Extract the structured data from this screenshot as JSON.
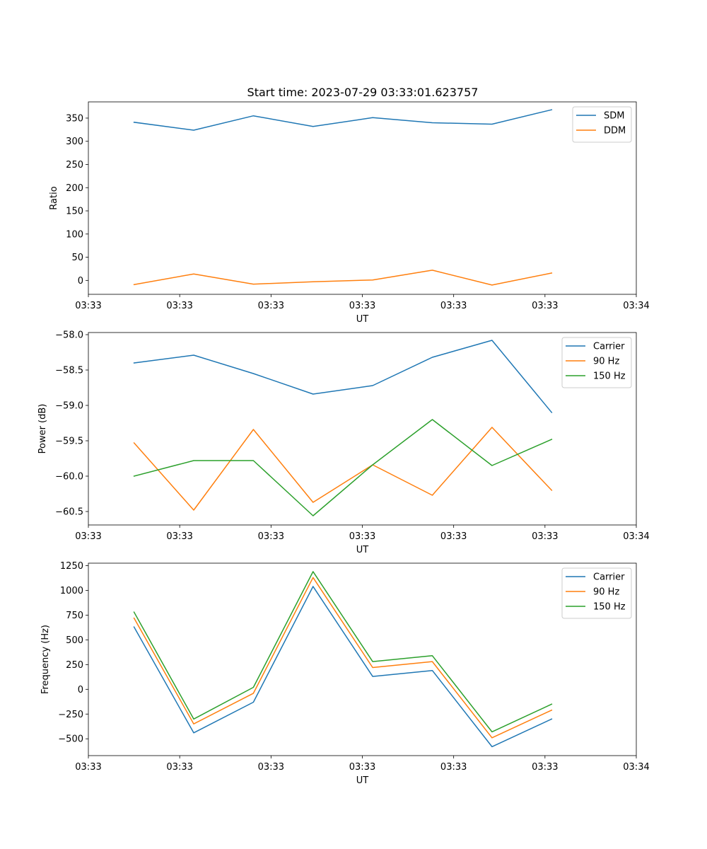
{
  "chart_data": [
    {
      "type": "line",
      "title": "Start time: 2023-07-29 03:33:01.623757",
      "xlabel": "UT",
      "ylabel": "Ratio",
      "xlim": [
        0.0,
        9.0
      ],
      "ylim": [
        -30,
        385
      ],
      "grid": false,
      "legend": "top-right",
      "x": [
        0.75,
        1.73,
        2.71,
        3.69,
        4.67,
        5.65,
        6.63,
        7.61
      ],
      "x_tick_values": [
        0,
        1.5,
        3,
        4.5,
        6,
        7.5,
        9
      ],
      "x_tick_labels": [
        "03:33",
        "03:33",
        "03:33",
        "03:33",
        "03:33",
        "03:33",
        "03:34"
      ],
      "y_ticks": [
        0,
        50,
        100,
        150,
        200,
        250,
        300,
        350
      ],
      "y_tick_labels": [
        "0",
        "50",
        "100",
        "150",
        "200",
        "250",
        "300",
        "350"
      ],
      "series": [
        {
          "name": "SDM",
          "color": "#1f77b4",
          "values": [
            341,
            324,
            355,
            332,
            351,
            340,
            337,
            368
          ]
        },
        {
          "name": "DDM",
          "color": "#ff7f0e",
          "values": [
            -9,
            14,
            -8,
            -3,
            1,
            22,
            -10,
            16
          ]
        }
      ]
    },
    {
      "type": "line",
      "title": "",
      "xlabel": "UT",
      "ylabel": "Power (dB)",
      "xlim": [
        0.0,
        9.0
      ],
      "ylim": [
        -60.69,
        -57.97
      ],
      "grid": false,
      "legend": "top-right",
      "x": [
        0.75,
        1.73,
        2.71,
        3.69,
        4.67,
        5.65,
        6.63,
        7.61
      ],
      "x_tick_values": [
        0,
        1.5,
        3,
        4.5,
        6,
        7.5,
        9
      ],
      "x_tick_labels": [
        "03:33",
        "03:33",
        "03:33",
        "03:33",
        "03:33",
        "03:33",
        "03:34"
      ],
      "y_ticks": [
        -60.5,
        -60.0,
        -59.5,
        -59.0,
        -58.5,
        -58.0
      ],
      "y_tick_labels": [
        "−60.5",
        "−60.0",
        "−59.5",
        "−59.0",
        "−58.5",
        "−58.0"
      ],
      "series": [
        {
          "name": "Carrier",
          "color": "#1f77b4",
          "values": [
            -58.4,
            -58.29,
            -58.55,
            -58.84,
            -58.72,
            -58.32,
            -58.08,
            -59.1
          ]
        },
        {
          "name": "90 Hz",
          "color": "#ff7f0e",
          "values": [
            -59.53,
            -60.48,
            -59.34,
            -60.37,
            -59.84,
            -60.27,
            -59.31,
            -60.2
          ]
        },
        {
          "name": "150 Hz",
          "color": "#2ca02c",
          "values": [
            -60.0,
            -59.78,
            -59.78,
            -60.56,
            -59.84,
            -59.2,
            -59.85,
            -59.48
          ]
        }
      ]
    },
    {
      "type": "line",
      "title": "",
      "xlabel": "UT",
      "ylabel": "Frequency (Hz)",
      "xlim": [
        0.0,
        9.0
      ],
      "ylim": [
        -670,
        1275
      ],
      "grid": false,
      "legend": "top-right",
      "x": [
        0.75,
        1.73,
        2.71,
        3.69,
        4.67,
        5.65,
        6.63,
        7.61
      ],
      "x_tick_values": [
        0,
        1.5,
        3,
        4.5,
        6,
        7.5,
        9
      ],
      "x_tick_labels": [
        "03:33",
        "03:33",
        "03:33",
        "03:33",
        "03:33",
        "03:33",
        "03:34"
      ],
      "y_ticks": [
        -500,
        -250,
        0,
        250,
        500,
        750,
        1000,
        1250
      ],
      "y_tick_labels": [
        "−500",
        "−250",
        "0",
        "250",
        "500",
        "750",
        "1000",
        "1250"
      ],
      "series": [
        {
          "name": "Carrier",
          "color": "#1f77b4",
          "values": [
            630,
            -440,
            -130,
            1040,
            130,
            190,
            -580,
            -300
          ]
        },
        {
          "name": "90 Hz",
          "color": "#ff7f0e",
          "values": [
            720,
            -350,
            -40,
            1130,
            220,
            280,
            -490,
            -210
          ]
        },
        {
          "name": "150 Hz",
          "color": "#2ca02c",
          "values": [
            780,
            -300,
            20,
            1190,
            280,
            340,
            -430,
            -150
          ]
        }
      ]
    }
  ]
}
